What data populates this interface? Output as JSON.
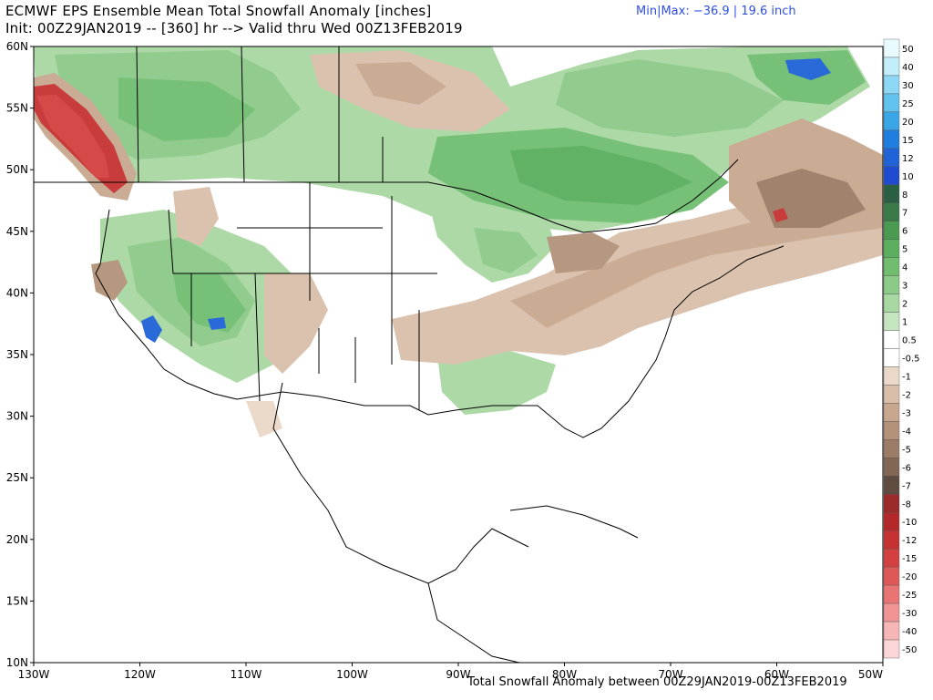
{
  "title": {
    "line1": "ECMWF EPS Ensemble Mean Total Snowfall Anomaly [inches]",
    "line2": "Init: 00Z29JAN2019 -- [360] hr --> Valid thru Wed 00Z13FEB2019"
  },
  "minmax": "Min|Max: −36.9 | 19.6 inch",
  "footer": "Total Snowfall Anomaly between 00Z29JAN2019-00Z13FEB2019",
  "lat_labels": [
    "60N",
    "55N",
    "50N",
    "45N",
    "40N",
    "35N",
    "30N",
    "25N",
    "20N",
    "15N",
    "10N"
  ],
  "lon_labels": [
    "130W",
    "120W",
    "110W",
    "100W",
    "90W",
    "80W",
    "70W",
    "60W",
    "50W"
  ],
  "colorbar": [
    {
      "label": "50",
      "color": "#e8fbff"
    },
    {
      "label": "40",
      "color": "#c2eefc"
    },
    {
      "label": "30",
      "color": "#8fd8f5"
    },
    {
      "label": "25",
      "color": "#62c2ee"
    },
    {
      "label": "20",
      "color": "#3aa6e8"
    },
    {
      "label": "15",
      "color": "#1f7fe0"
    },
    {
      "label": "12",
      "color": "#1f63d6"
    },
    {
      "label": "10",
      "color": "#1f4bd0"
    },
    {
      "label": "8",
      "color": "#2a5f44"
    },
    {
      "label": "7",
      "color": "#3a7a48"
    },
    {
      "label": "6",
      "color": "#4a9a52"
    },
    {
      "label": "5",
      "color": "#5aae5e"
    },
    {
      "label": "4",
      "color": "#70bd70"
    },
    {
      "label": "3",
      "color": "#8cca88"
    },
    {
      "label": "2",
      "color": "#a8d8a2"
    },
    {
      "label": "1",
      "color": "#c6e6bf"
    },
    {
      "label": "0.5",
      "color": "#ffffff"
    },
    {
      "label": "-0.5",
      "color": "#ffffff"
    },
    {
      "label": "-1",
      "color": "#ead8c8"
    },
    {
      "label": "-2",
      "color": "#d9bfaa"
    },
    {
      "label": "-3",
      "color": "#c8a78f"
    },
    {
      "label": "-4",
      "color": "#b39279"
    },
    {
      "label": "-5",
      "color": "#9c7c66"
    },
    {
      "label": "-6",
      "color": "#826755"
    },
    {
      "label": "-7",
      "color": "#5f4c40"
    },
    {
      "label": "-8",
      "color": "#9b2a2a"
    },
    {
      "label": "-10",
      "color": "#b32828"
    },
    {
      "label": "-12",
      "color": "#c63232"
    },
    {
      "label": "-15",
      "color": "#d34040"
    },
    {
      "label": "-20",
      "color": "#df5858"
    },
    {
      "label": "-25",
      "color": "#e87474"
    },
    {
      "label": "-30",
      "color": "#f09494"
    },
    {
      "label": "-40",
      "color": "#f6b6b6"
    },
    {
      "label": "-50",
      "color": "#fbd6d6"
    }
  ]
}
